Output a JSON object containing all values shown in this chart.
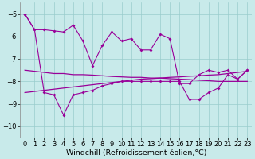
{
  "background_color": "#c8eaea",
  "line_color": "#990099",
  "grid_color": "#99cccc",
  "xlabel": "Windchill (Refroidissement éolien,°C)",
  "xlabel_fontsize": 6.8,
  "tick_fontsize": 6.0,
  "ylim": [
    -10.5,
    -4.5
  ],
  "yticks": [
    -10,
    -9,
    -8,
    -7,
    -6,
    -5
  ],
  "xlim": [
    -0.5,
    23.5
  ],
  "xticks": [
    0,
    1,
    2,
    3,
    4,
    5,
    6,
    7,
    8,
    9,
    10,
    11,
    12,
    13,
    14,
    15,
    16,
    17,
    18,
    19,
    20,
    21,
    22,
    23
  ],
  "s1": [
    -5.0,
    -5.7,
    -5.7,
    -5.75,
    -5.8,
    -5.5,
    -6.2,
    -7.3,
    -6.4,
    -5.8,
    -6.2,
    -6.1,
    -6.6,
    -6.6,
    -5.9,
    -6.1,
    -8.1,
    -8.1,
    -7.7,
    -7.5,
    -7.6,
    -7.5,
    -7.9,
    -7.5
  ],
  "s2": [
    -5.0,
    -5.7,
    -8.5,
    -8.6,
    -9.5,
    -8.6,
    -8.5,
    -8.4,
    -8.2,
    -8.1,
    -8.0,
    -8.0,
    -8.0,
    -8.0,
    -8.0,
    -8.0,
    -8.0,
    -8.8,
    -8.8,
    -8.5,
    -8.3,
    -7.7,
    -7.9,
    -7.5
  ],
  "s3": [
    -7.5,
    -7.55,
    -7.6,
    -7.65,
    -7.65,
    -7.7,
    -7.7,
    -7.72,
    -7.75,
    -7.78,
    -7.8,
    -7.82,
    -7.82,
    -7.85,
    -7.85,
    -7.88,
    -7.9,
    -7.92,
    -7.95,
    -7.97,
    -8.0,
    -8.0,
    -8.0,
    -8.0
  ],
  "s4": [
    -8.5,
    -8.45,
    -8.4,
    -8.35,
    -8.3,
    -8.25,
    -8.2,
    -8.15,
    -8.1,
    -8.05,
    -8.0,
    -7.95,
    -7.9,
    -7.88,
    -7.85,
    -7.82,
    -7.8,
    -7.77,
    -7.75,
    -7.72,
    -7.7,
    -7.65,
    -7.6,
    -7.55
  ]
}
